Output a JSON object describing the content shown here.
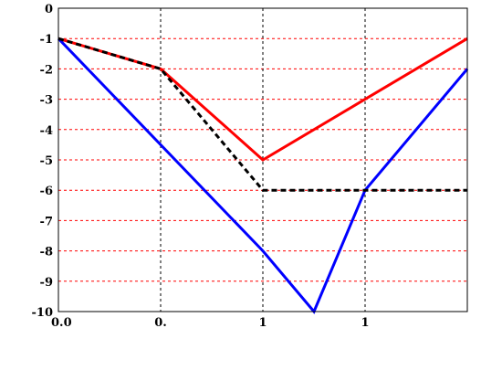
{
  "chart_data": {
    "type": "line",
    "x_tick_labels": [
      "0.0",
      "0.",
      "1",
      "1",
      ""
    ],
    "y_tick_labels": [
      "0",
      "-1",
      "-2",
      "-3",
      "-4",
      "-5",
      "-6",
      "-7",
      "-8",
      "-9",
      "-10"
    ],
    "xlim": [
      0,
      4
    ],
    "ylim": [
      -10,
      0
    ],
    "grid": {
      "x": true,
      "y": true,
      "x_color": "#000000",
      "y_color": "#ff0000",
      "style": "dashed"
    },
    "series": [
      {
        "color": "#ff0000",
        "style": "solid",
        "x": [
          0,
          1,
          2,
          3,
          4
        ],
        "y": [
          -1,
          -2,
          -5,
          -3,
          -1
        ]
      },
      {
        "color": "#0000ff",
        "style": "solid",
        "x": [
          0,
          2,
          2.5,
          3,
          4
        ],
        "y": [
          -1,
          -8,
          -10,
          -6,
          -2
        ]
      },
      {
        "color": "#000000",
        "style": "dotted",
        "x": [
          0,
          1,
          2,
          3,
          4
        ],
        "y": [
          -1,
          -2,
          -6,
          -6,
          -6
        ]
      }
    ]
  }
}
